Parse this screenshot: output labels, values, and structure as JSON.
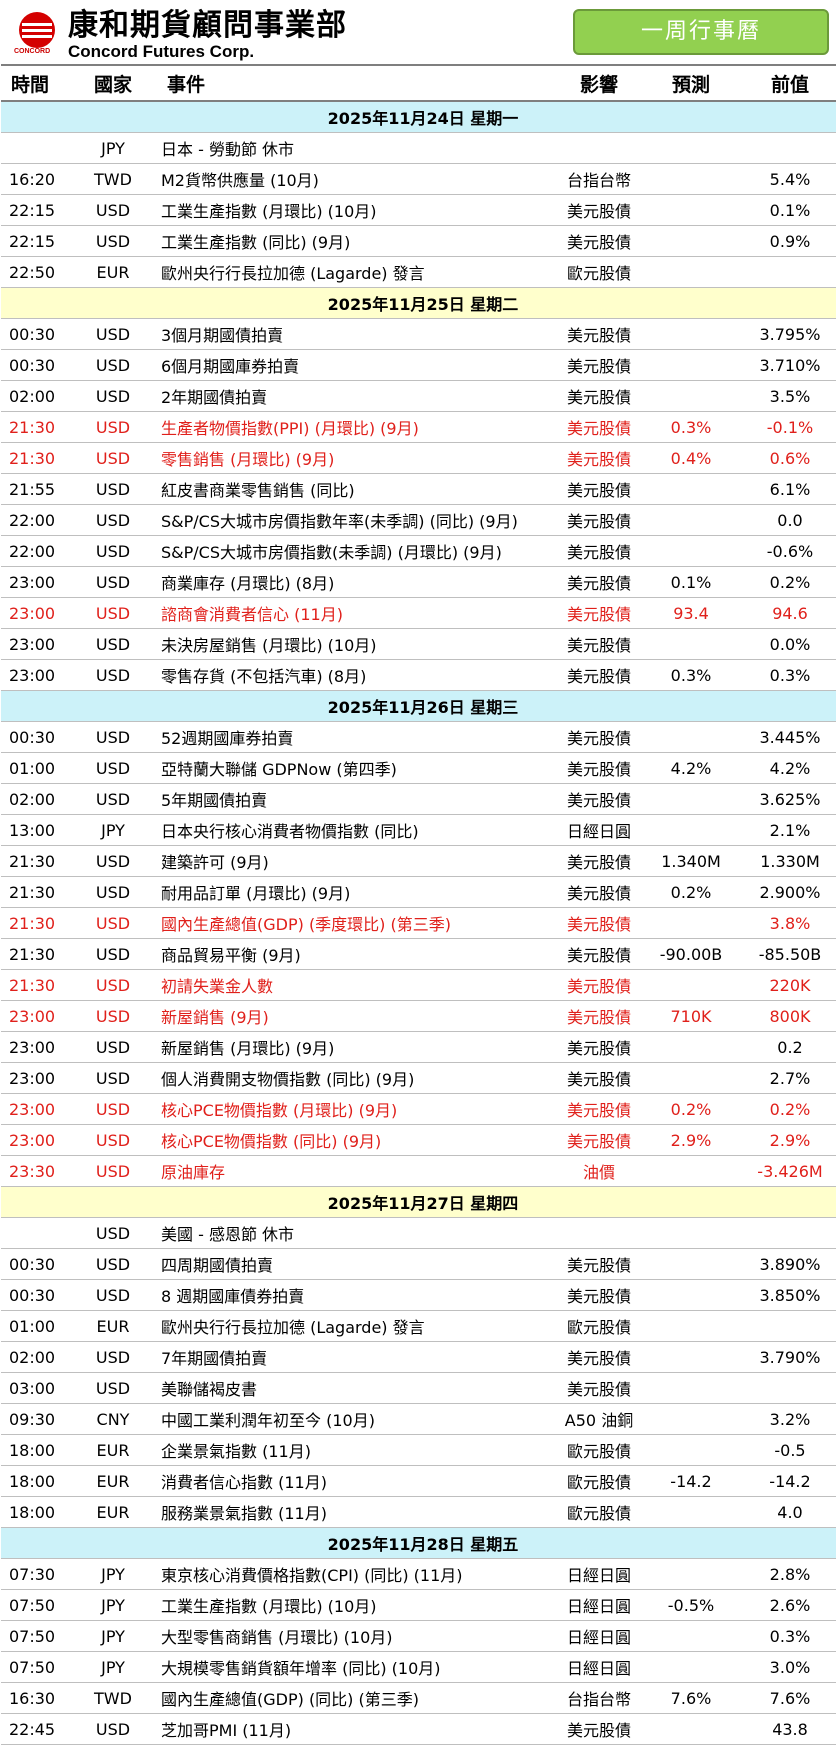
{
  "header": {
    "logo_cn": "康和期貨顧問事業部",
    "logo_en": "Concord Futures Corp.",
    "logo_small": "CONCORD",
    "title": "一周行事曆"
  },
  "columns": [
    "時間",
    "國家",
    "事件",
    "影響",
    "預測",
    "前值"
  ],
  "days": [
    {
      "date": "2025年11月24日  星期一",
      "color": "cyan",
      "events": [
        {
          "time": "",
          "country": "JPY",
          "event": "日本 - 勞動節 休市",
          "impact": "",
          "forecast": "",
          "previous": "",
          "highlight": false
        },
        {
          "time": "16:20",
          "country": "TWD",
          "event": "M2貨幣供應量 (10月)",
          "impact": "台指台幣",
          "forecast": "",
          "previous": "5.4%",
          "highlight": false
        },
        {
          "time": "22:15",
          "country": "USD",
          "event": "工業生產指數 (月環比) (10月)",
          "impact": "美元股債",
          "forecast": "",
          "previous": "0.1%",
          "highlight": false
        },
        {
          "time": "22:15",
          "country": "USD",
          "event": "工業生產指數 (同比) (9月)",
          "impact": "美元股債",
          "forecast": "",
          "previous": "0.9%",
          "highlight": false
        },
        {
          "time": "22:50",
          "country": "EUR",
          "event": "歐州央行行長拉加德 (Lagarde) 發言",
          "impact": "歐元股債",
          "forecast": "",
          "previous": "",
          "highlight": false
        }
      ]
    },
    {
      "date": "2025年11月25日  星期二",
      "color": "yellow",
      "events": [
        {
          "time": "00:30",
          "country": "USD",
          "event": "3個月期國債拍賣",
          "impact": "美元股債",
          "forecast": "",
          "previous": "3.795%",
          "highlight": false
        },
        {
          "time": "00:30",
          "country": "USD",
          "event": "6個月期國庫券拍賣",
          "impact": "美元股債",
          "forecast": "",
          "previous": "3.710%",
          "highlight": false
        },
        {
          "time": "02:00",
          "country": "USD",
          "event": "2年期國債拍賣",
          "impact": "美元股債",
          "forecast": "",
          "previous": "3.5%",
          "highlight": false
        },
        {
          "time": "21:30",
          "country": "USD",
          "event": "生產者物價指數(PPI) (月環比) (9月)",
          "impact": "美元股債",
          "forecast": "0.3%",
          "previous": "-0.1%",
          "highlight": true
        },
        {
          "time": "21:30",
          "country": "USD",
          "event": "零售銷售 (月環比) (9月)",
          "impact": "美元股債",
          "forecast": "0.4%",
          "previous": "0.6%",
          "highlight": true
        },
        {
          "time": "21:55",
          "country": "USD",
          "event": "紅皮書商業零售銷售 (同比)",
          "impact": "美元股債",
          "forecast": "",
          "previous": "6.1%",
          "highlight": false
        },
        {
          "time": "22:00",
          "country": "USD",
          "event": "S&P/CS大城市房價指數年率(未季調) (同比) (9月)",
          "impact": "美元股債",
          "forecast": "",
          "previous": "0.0",
          "highlight": false
        },
        {
          "time": "22:00",
          "country": "USD",
          "event": "S&P/CS大城市房價指數(未季調) (月環比) (9月)",
          "impact": "美元股債",
          "forecast": "",
          "previous": "-0.6%",
          "highlight": false
        },
        {
          "time": "23:00",
          "country": "USD",
          "event": "商業庫存 (月環比) (8月)",
          "impact": "美元股債",
          "forecast": "0.1%",
          "previous": "0.2%",
          "highlight": false
        },
        {
          "time": "23:00",
          "country": "USD",
          "event": "諮商會消費者信心 (11月)",
          "impact": "美元股債",
          "forecast": "93.4",
          "previous": "94.6",
          "highlight": true
        },
        {
          "time": "23:00",
          "country": "USD",
          "event": "未決房屋銷售 (月環比) (10月)",
          "impact": "美元股債",
          "forecast": "",
          "previous": "0.0%",
          "highlight": false
        },
        {
          "time": "23:00",
          "country": "USD",
          "event": "零售存貨 (不包括汽車) (8月)",
          "impact": "美元股債",
          "forecast": "0.3%",
          "previous": "0.3%",
          "highlight": false
        }
      ]
    },
    {
      "date": "2025年11月26日  星期三",
      "color": "cyan",
      "events": [
        {
          "time": "00:30",
          "country": "USD",
          "event": "52週期國庫券拍賣",
          "impact": "美元股債",
          "forecast": "",
          "previous": "3.445%",
          "highlight": false
        },
        {
          "time": "01:00",
          "country": "USD",
          "event": "亞特蘭大聯儲 GDPNow (第四季)",
          "impact": "美元股債",
          "forecast": "4.2%",
          "previous": "4.2%",
          "highlight": false
        },
        {
          "time": "02:00",
          "country": "USD",
          "event": "5年期國債拍賣",
          "impact": "美元股債",
          "forecast": "",
          "previous": "3.625%",
          "highlight": false
        },
        {
          "time": "13:00",
          "country": "JPY",
          "event": "日本央行核心消費者物價指數 (同比)",
          "impact": "日經日圓",
          "forecast": "",
          "previous": "2.1%",
          "highlight": false
        },
        {
          "time": "21:30",
          "country": "USD",
          "event": "建築許可 (9月)",
          "impact": "美元股債",
          "forecast": "1.340M",
          "previous": "1.330M",
          "highlight": false
        },
        {
          "time": "21:30",
          "country": "USD",
          "event": "耐用品訂單 (月環比) (9月)",
          "impact": "美元股債",
          "forecast": "0.2%",
          "previous": "2.900%",
          "highlight": false
        },
        {
          "time": "21:30",
          "country": "USD",
          "event": "國內生產總值(GDP) (季度環比) (第三季)",
          "impact": "美元股債",
          "forecast": "",
          "previous": "3.8%",
          "highlight": true
        },
        {
          "time": "21:30",
          "country": "USD",
          "event": "商品貿易平衡 (9月)",
          "impact": "美元股債",
          "forecast": "-90.00B",
          "previous": "-85.50B",
          "highlight": false
        },
        {
          "time": "21:30",
          "country": "USD",
          "event": "初請失業金人數",
          "impact": "美元股債",
          "forecast": "",
          "previous": "220K",
          "highlight": true
        },
        {
          "time": "23:00",
          "country": "USD",
          "event": "新屋銷售 (9月)",
          "impact": "美元股債",
          "forecast": "710K",
          "previous": "800K",
          "highlight": true
        },
        {
          "time": "23:00",
          "country": "USD",
          "event": "新屋銷售 (月環比) (9月)",
          "impact": "美元股債",
          "forecast": "",
          "previous": "0.2",
          "highlight": false
        },
        {
          "time": "23:00",
          "country": "USD",
          "event": "個人消費開支物價指數 (同比) (9月)",
          "impact": "美元股債",
          "forecast": "",
          "previous": "2.7%",
          "highlight": false
        },
        {
          "time": "23:00",
          "country": "USD",
          "event": "核心PCE物價指數 (月環比) (9月)",
          "impact": "美元股債",
          "forecast": "0.2%",
          "previous": "0.2%",
          "highlight": true
        },
        {
          "time": "23:00",
          "country": "USD",
          "event": "核心PCE物價指數 (同比) (9月)",
          "impact": "美元股債",
          "forecast": "2.9%",
          "previous": "2.9%",
          "highlight": true
        },
        {
          "time": "23:30",
          "country": "USD",
          "event": "原油庫存",
          "impact": "油價",
          "forecast": "",
          "previous": "-3.426M",
          "highlight": true
        }
      ]
    },
    {
      "date": "2025年11月27日  星期四",
      "color": "yellow",
      "events": [
        {
          "time": "",
          "country": "USD",
          "event": "美國 - 感恩節 休市",
          "impact": "",
          "forecast": "",
          "previous": "",
          "highlight": false
        },
        {
          "time": "00:30",
          "country": "USD",
          "event": "四周期國債拍賣",
          "impact": "美元股債",
          "forecast": "",
          "previous": "3.890%",
          "highlight": false
        },
        {
          "time": "00:30",
          "country": "USD",
          "event": "8 週期國庫債券拍賣",
          "impact": "美元股債",
          "forecast": "",
          "previous": "3.850%",
          "highlight": false
        },
        {
          "time": "01:00",
          "country": "EUR",
          "event": "歐州央行行長拉加德 (Lagarde) 發言",
          "impact": "歐元股債",
          "forecast": "",
          "previous": "",
          "highlight": false
        },
        {
          "time": "02:00",
          "country": "USD",
          "event": "7年期國債拍賣",
          "impact": "美元股債",
          "forecast": "",
          "previous": "3.790%",
          "highlight": false
        },
        {
          "time": "03:00",
          "country": "USD",
          "event": "美聯儲褐皮書",
          "impact": "美元股債",
          "forecast": "",
          "previous": "",
          "highlight": false
        },
        {
          "time": "09:30",
          "country": "CNY",
          "event": "中國工業利潤年初至今 (10月)",
          "impact": "A50 油銅",
          "forecast": "",
          "previous": "3.2%",
          "highlight": false
        },
        {
          "time": "18:00",
          "country": "EUR",
          "event": "企業景氣指數 (11月)",
          "impact": "歐元股債",
          "forecast": "",
          "previous": "-0.5",
          "highlight": false
        },
        {
          "time": "18:00",
          "country": "EUR",
          "event": "消費者信心指數 (11月)",
          "impact": "歐元股債",
          "forecast": "-14.2",
          "previous": "-14.2",
          "highlight": false
        },
        {
          "time": "18:00",
          "country": "EUR",
          "event": "服務業景氣指數 (11月)",
          "impact": "歐元股債",
          "forecast": "",
          "previous": "4.0",
          "highlight": false
        }
      ]
    },
    {
      "date": "2025年11月28日  星期五",
      "color": "cyan",
      "events": [
        {
          "time": "07:30",
          "country": "JPY",
          "event": "東京核心消費價格指數(CPI) (同比) (11月)",
          "impact": "日經日圓",
          "forecast": "",
          "previous": "2.8%",
          "highlight": false
        },
        {
          "time": "07:50",
          "country": "JPY",
          "event": "工業生產指數 (月環比) (10月)",
          "impact": "日經日圓",
          "forecast": "-0.5%",
          "previous": "2.6%",
          "highlight": false
        },
        {
          "time": "07:50",
          "country": "JPY",
          "event": "大型零售商銷售 (月環比) (10月)",
          "impact": "日經日圓",
          "forecast": "",
          "previous": "0.3%",
          "highlight": false
        },
        {
          "time": "07:50",
          "country": "JPY",
          "event": "大規模零售銷貨額年增率 (同比) (10月)",
          "impact": "日經日圓",
          "forecast": "",
          "previous": "3.0%",
          "highlight": false
        },
        {
          "time": "16:30",
          "country": "TWD",
          "event": "國內生產總值(GDP) (同比) (第三季)",
          "impact": "台指台幣",
          "forecast": "7.6%",
          "previous": "7.6%",
          "highlight": false
        },
        {
          "time": "22:45",
          "country": "USD",
          "event": "芝加哥PMI (11月)",
          "impact": "美元股債",
          "forecast": "",
          "previous": "43.8",
          "highlight": false
        }
      ]
    }
  ]
}
